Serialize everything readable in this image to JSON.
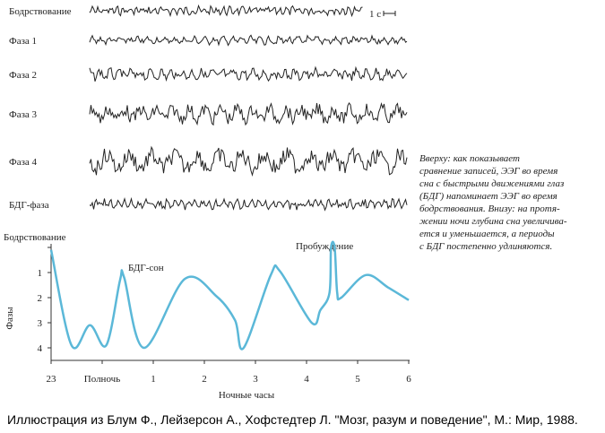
{
  "eeg": {
    "labels": [
      "Бодрствование",
      "Фаза 1",
      "Фаза 2",
      "Фаза 3",
      "Фаза 4",
      "БДГ-фаза"
    ],
    "scale_label": "1 с"
  },
  "caption": [
    "Вверху: как показывает",
    "сравнение записей, ЭЭГ во время",
    "сна с быстрыми движениями глаз",
    "(БДГ) напоминает ЭЭГ во время",
    "бодрствования. Внизу: на протя-",
    "жении ночи глубина сна увеличива-",
    "ется и уменьшается, а периоды",
    "с БДГ постепенно удлиняются."
  ],
  "credit": "Иллюстрация из Блум Ф., Лейзерсон А., Хофстедтер Л. \"Мозг, разум и поведение\", М.: Мир, 1988.",
  "chart_data": {
    "type": "line",
    "ylabel": "Фазы",
    "xlabel": "Ночные часы",
    "annotations": [
      "БДГ-сон",
      "Пробуждение"
    ],
    "x": [
      23,
      23.4,
      23.76,
      24.08,
      24.35,
      24.43,
      24.82,
      25.62,
      26.24,
      26.6,
      26.77,
      27.3,
      27.48,
      28.1,
      28.27,
      28.45,
      28.48,
      28.55,
      28.6,
      28.68,
      29.16,
      29.6,
      30
    ],
    "series": [
      {
        "color": "#5bb8d8",
        "values": [
          0.1,
          3.9,
          3.1,
          3.9,
          1.3,
          1.2,
          4.0,
          1.25,
          1.95,
          2.9,
          4.0,
          1.1,
          0.95,
          3.0,
          2.5,
          1.8,
          0,
          0,
          1.8,
          2.0,
          1.1,
          1.6,
          2.1
        ]
      }
    ],
    "xlim": [
      23,
      30
    ],
    "ylim": [
      0,
      4.5
    ],
    "y_inverted": true,
    "xticks": [
      23,
      {
        "value": 24,
        "label": "Полночь"
      },
      {
        "value": 25,
        "label": "1"
      },
      {
        "value": 26,
        "label": "2"
      },
      {
        "value": 27,
        "label": "3"
      },
      {
        "value": 28,
        "label": "4"
      },
      {
        "value": 29,
        "label": "5"
      },
      {
        "value": 30,
        "label": "6"
      }
    ],
    "yticks": [
      {
        "value": 0,
        "label": "Бодрствование"
      },
      1,
      2,
      3,
      4
    ]
  }
}
